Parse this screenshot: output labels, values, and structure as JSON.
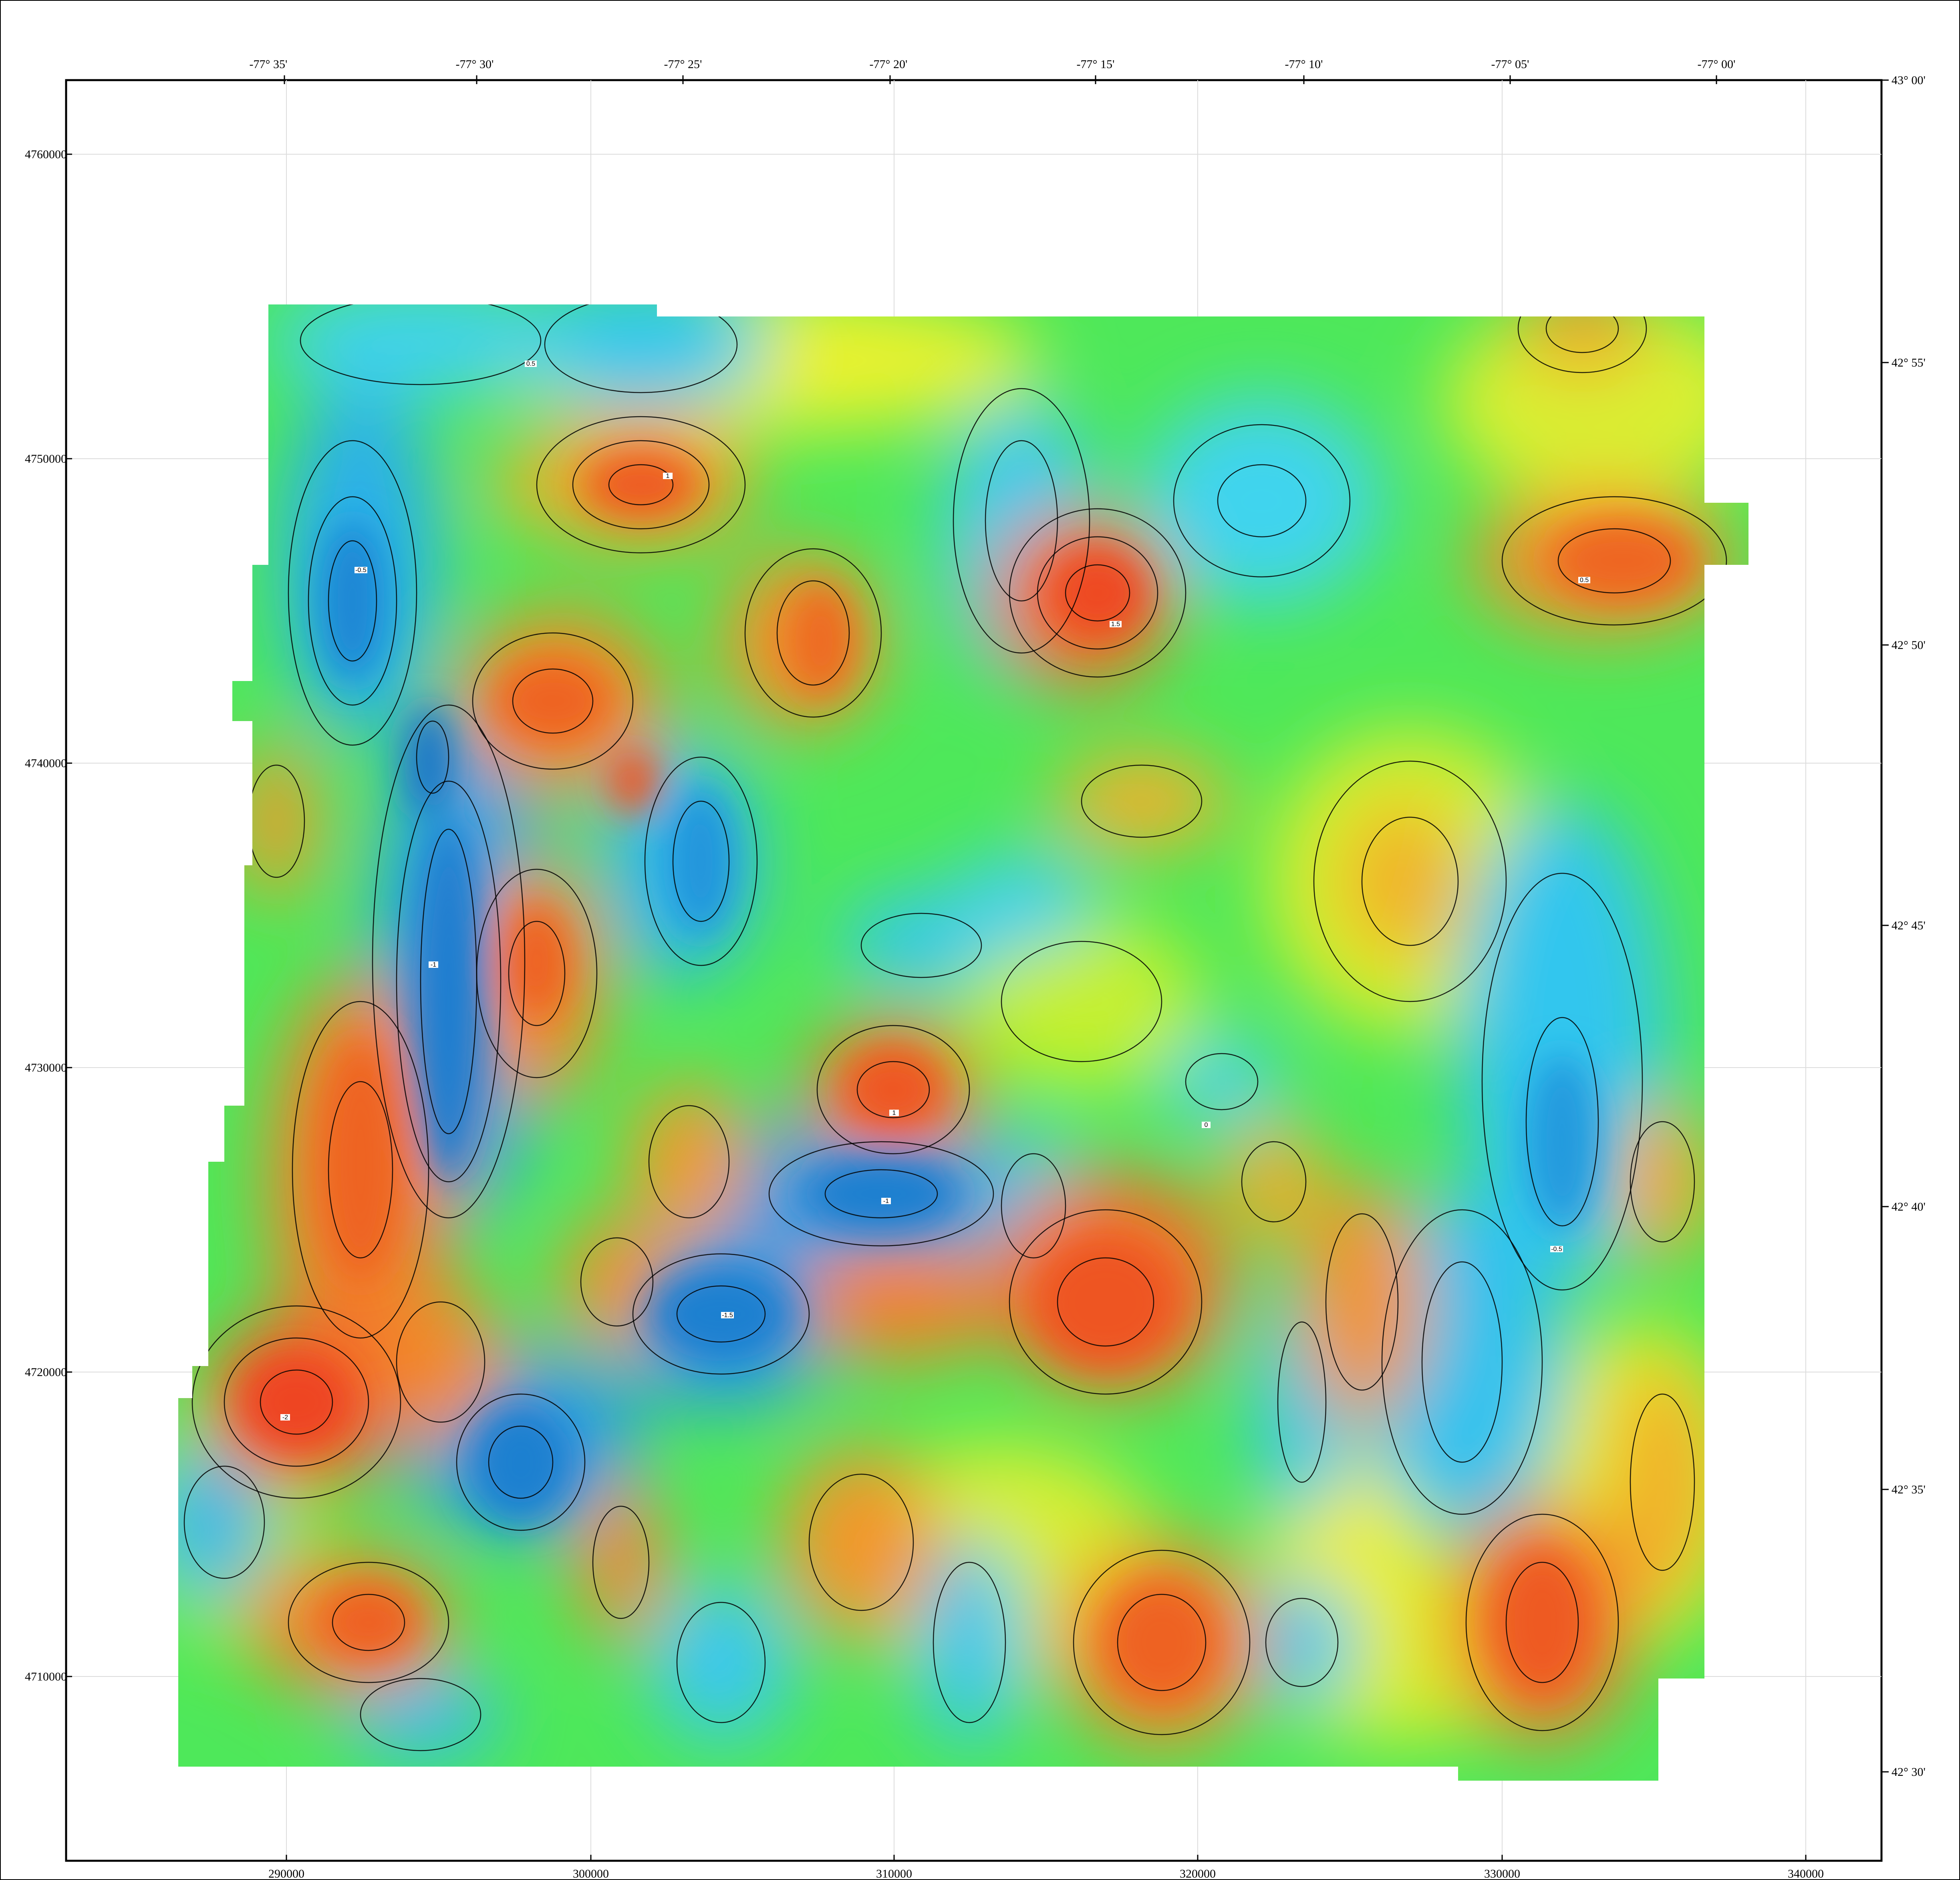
{
  "map": {
    "coordinate_system": "UTM easting/northing with geographic graticule",
    "x_axis_labels": [
      "290000",
      "300000",
      "310000",
      "320000",
      "330000",
      "340000"
    ],
    "y_axis_labels": [
      "4710000",
      "4720000",
      "4730000",
      "4740000",
      "4750000",
      "4760000"
    ],
    "top_labels": [
      "-77° 35'",
      "-77° 30'",
      "-77° 25'",
      "-77° 20'",
      "-77° 15'",
      "-77° 10'",
      "-77° 05'",
      "-77° 00'"
    ],
    "right_labels": [
      "43° 00'",
      "42° 55'",
      "42° 50'",
      "42° 45'",
      "42° 40'",
      "42° 35'",
      "42° 30'"
    ],
    "contour_labels": [
      "0.5",
      "1",
      "-0.5",
      "-1",
      "-1.5",
      "-2",
      "0",
      "1.5"
    ],
    "palette": {
      "blue": "#1e8fd8",
      "cyan": "#35d6f0",
      "green": "#22e84a",
      "lime": "#a8f030",
      "yellow": "#f4f22a",
      "orange": "#f6a02a",
      "red": "#f05a24",
      "contour": "#000000",
      "grid": "#cfcfcf"
    }
  }
}
